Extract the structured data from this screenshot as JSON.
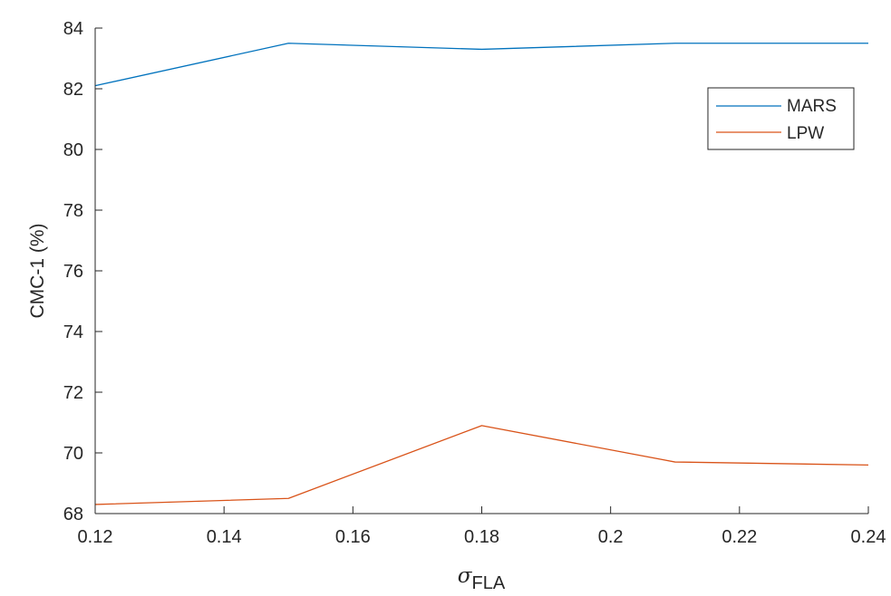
{
  "chart_data": {
    "type": "line",
    "title": "",
    "xlabel_symbol": "σ",
    "xlabel_subscript": "FLA",
    "ylabel": "CMC-1 (%)",
    "x": [
      0.12,
      0.15,
      0.18,
      0.21,
      0.24
    ],
    "xlim": [
      0.12,
      0.24
    ],
    "ylim": [
      68,
      84
    ],
    "xticks": [
      0.12,
      0.14,
      0.16,
      0.18,
      0.2,
      0.22,
      0.24
    ],
    "xtick_labels": [
      "0.12",
      "0.14",
      "0.16",
      "0.18",
      "0.2",
      "0.22",
      "0.24"
    ],
    "yticks": [
      68,
      70,
      72,
      74,
      76,
      78,
      80,
      82,
      84
    ],
    "ytick_labels": [
      "68",
      "70",
      "72",
      "74",
      "76",
      "78",
      "80",
      "82",
      "84"
    ],
    "grid": false,
    "legend_position": "top-right",
    "series": [
      {
        "name": "MARS",
        "color": "#0072BD",
        "values": [
          82.1,
          83.5,
          83.3,
          83.5,
          83.5
        ]
      },
      {
        "name": "LPW",
        "color": "#D95319",
        "values": [
          68.3,
          68.5,
          70.9,
          69.7,
          69.6
        ]
      }
    ]
  }
}
